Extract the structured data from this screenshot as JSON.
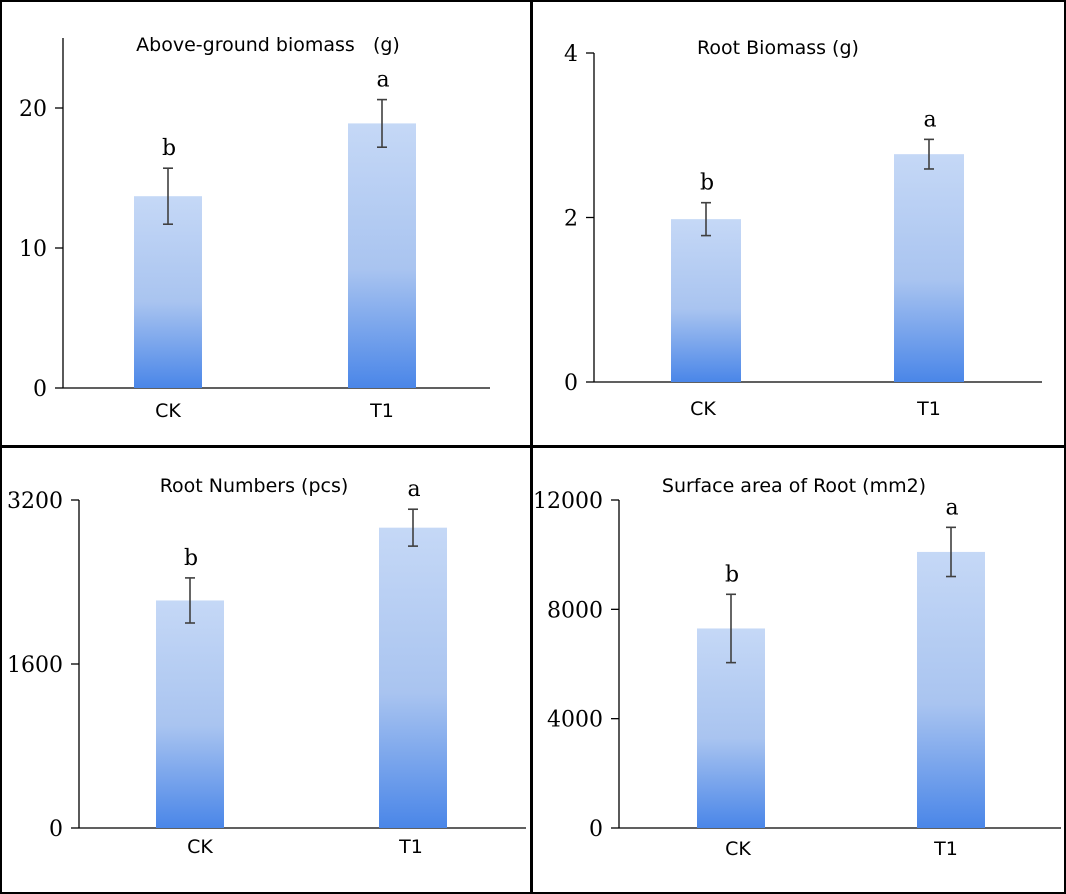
{
  "chart_data": [
    {
      "type": "bar",
      "title": "Above-ground biomass   (g)",
      "categories": [
        "CK",
        "T1"
      ],
      "values": [
        13.7,
        18.9
      ],
      "errors": [
        2.0,
        1.7
      ],
      "significance": [
        "b",
        "a"
      ],
      "ylim": [
        0,
        25
      ],
      "yticks": [
        0,
        10,
        20
      ],
      "ytick_labels": [
        "0",
        "10",
        "20"
      ]
    },
    {
      "type": "bar",
      "title": "Root Biomass (g)",
      "categories": [
        "CK",
        "T1"
      ],
      "values": [
        1.98,
        2.77
      ],
      "errors": [
        0.2,
        0.18
      ],
      "significance": [
        "b",
        "a"
      ],
      "ylim": [
        0,
        4
      ],
      "yticks": [
        0,
        2,
        4
      ],
      "ytick_labels": [
        "0",
        "2",
        "4"
      ]
    },
    {
      "type": "bar",
      "title": "Root Numbers (pcs)",
      "categories": [
        "CK",
        "T1"
      ],
      "values": [
        2220,
        2930
      ],
      "errors": [
        220,
        180
      ],
      "significance": [
        "b",
        "a"
      ],
      "ylim": [
        0,
        3200
      ],
      "yticks": [
        0,
        1600,
        3200
      ],
      "ytick_labels": [
        "0",
        "1600",
        "3200"
      ]
    },
    {
      "type": "bar",
      "title": "Surface area of Root (mm2)",
      "categories": [
        "CK",
        "T1"
      ],
      "values": [
        7300,
        10100
      ],
      "errors": [
        1250,
        900
      ],
      "significance": [
        "b",
        "a"
      ],
      "ylim": [
        0,
        12000
      ],
      "yticks": [
        0,
        4000,
        8000,
        12000
      ],
      "ytick_labels": [
        "0",
        "4000",
        "8000",
        "12000"
      ]
    }
  ],
  "colors": {
    "bar_top": "#c5d8f6",
    "bar_bottom": "#4a86e8",
    "axis": "#000000",
    "error_bar": "#404040"
  }
}
